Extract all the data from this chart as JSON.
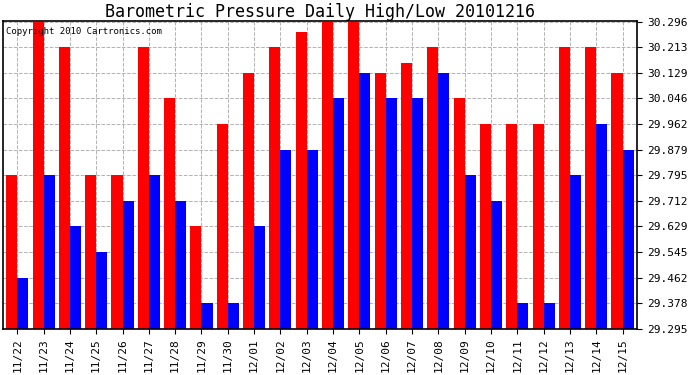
{
  "title": "Barometric Pressure Daily High/Low 20101216",
  "copyright": "Copyright 2010 Cartronics.com",
  "dates": [
    "11/22",
    "11/23",
    "11/24",
    "11/25",
    "11/26",
    "11/27",
    "11/28",
    "11/29",
    "11/30",
    "12/01",
    "12/02",
    "12/03",
    "12/04",
    "12/05",
    "12/06",
    "12/07",
    "12/08",
    "12/09",
    "12/10",
    "12/11",
    "12/12",
    "12/13",
    "12/14",
    "12/15"
  ],
  "highs": [
    29.795,
    30.296,
    30.213,
    29.795,
    29.795,
    30.213,
    30.046,
    29.629,
    29.962,
    30.129,
    30.213,
    30.262,
    30.296,
    30.296,
    30.129,
    30.162,
    30.213,
    30.046,
    29.962,
    29.962,
    29.962,
    30.213,
    30.213,
    30.129
  ],
  "lows": [
    29.462,
    29.795,
    29.629,
    29.545,
    29.712,
    29.795,
    29.712,
    29.378,
    29.378,
    29.629,
    29.879,
    29.879,
    30.046,
    30.129,
    30.046,
    30.046,
    30.129,
    29.795,
    29.712,
    29.378,
    29.378,
    29.795,
    29.962,
    29.879
  ],
  "high_color": "#ff0000",
  "low_color": "#0000ff",
  "bg_color": "#ffffff",
  "grid_color": "#aaaaaa",
  "ymin": 29.295,
  "ymax": 30.296,
  "yticks": [
    29.295,
    29.378,
    29.462,
    29.545,
    29.629,
    29.712,
    29.795,
    29.879,
    29.962,
    30.046,
    30.129,
    30.213,
    30.296
  ],
  "title_fontsize": 12,
  "tick_fontsize": 8,
  "bar_width": 0.42
}
